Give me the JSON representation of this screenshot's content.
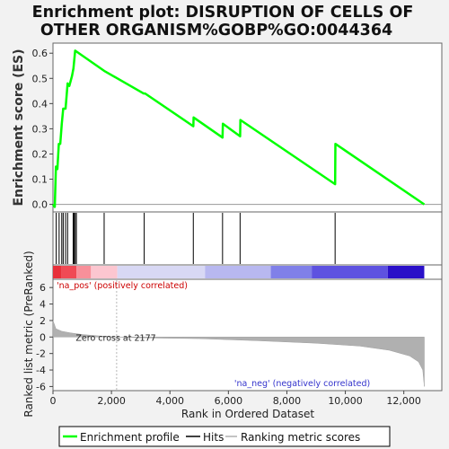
{
  "chart_data": {
    "type": "line",
    "title_lines": [
      "Enrichment plot: DISRUPTION OF CELLS OF",
      "OTHER ORGANISM%GOBP%GO:0044364"
    ],
    "xlabel": "Rank in Ordered Dataset",
    "ylabel_top": "Enrichment score (ES)",
    "ylabel_bottom": "Ranked list metric (PreRanked)",
    "xlim": [
      0,
      13300
    ],
    "x_ticks": [
      0,
      2000,
      4000,
      6000,
      8000,
      10000,
      12000
    ],
    "x_tick_labels": [
      "0",
      "2,000",
      "4,000",
      "6,000",
      "8,000",
      "10,000",
      "12,000"
    ],
    "es_ylim": [
      -0.03,
      0.64
    ],
    "es_ticks": [
      0.0,
      0.1,
      0.2,
      0.3,
      0.4,
      0.5,
      0.6
    ],
    "es_tick_labels": [
      "0.0",
      "0.1",
      "0.2",
      "0.3",
      "0.4",
      "0.5",
      "0.6"
    ],
    "metric_ylim": [
      -6.5,
      7.0
    ],
    "metric_ticks": [
      6,
      4,
      2,
      0,
      -2,
      -4,
      -6
    ],
    "metric_tick_labels": [
      "6",
      "4",
      "2",
      "0",
      "-2",
      "-4",
      "-6"
    ],
    "series": [
      {
        "name": "Enrichment profile",
        "color": "#00ff00",
        "x": [
          0,
          60,
          100,
          150,
          200,
          250,
          300,
          350,
          430,
          500,
          560,
          650,
          700,
          760,
          1750,
          3100,
          3150,
          4800,
          4810,
          5800,
          5810,
          6400,
          6410,
          9650,
          9660,
          12700
        ],
        "y": [
          0.0,
          -0.01,
          0.15,
          0.14,
          0.24,
          0.24,
          0.32,
          0.38,
          0.38,
          0.48,
          0.47,
          0.51,
          0.54,
          0.61,
          0.53,
          0.44,
          0.44,
          0.31,
          0.345,
          0.265,
          0.32,
          0.27,
          0.335,
          0.08,
          0.24,
          0.0
        ]
      }
    ],
    "hits": [
      110,
      210,
      300,
      350,
      430,
      500,
      690,
      720,
      760,
      800,
      1750,
      3120,
      4800,
      5800,
      6400,
      9650
    ],
    "metric_profile": {
      "x": [
        0,
        100,
        300,
        600,
        1000,
        1500,
        2177,
        3000,
        5000,
        7000,
        9000,
        10500,
        11500,
        12200,
        12500,
        12650,
        12700
      ],
      "y": [
        2.0,
        1.0,
        0.7,
        0.5,
        0.3,
        0.15,
        0.0,
        -0.1,
        -0.2,
        -0.45,
        -0.75,
        -1.1,
        -1.6,
        -2.3,
        -3.0,
        -4.0,
        -6.0
      ]
    },
    "heat_strip": [
      {
        "x0": 0,
        "x1": 300,
        "color": "#e8303a"
      },
      {
        "x0": 300,
        "x1": 800,
        "color": "#f04a55"
      },
      {
        "x0": 800,
        "x1": 1300,
        "color": "#f8909a"
      },
      {
        "x0": 1300,
        "x1": 2200,
        "color": "#fcc6d0"
      },
      {
        "x0": 2200,
        "x1": 5200,
        "color": "#d8d8f4"
      },
      {
        "x0": 5200,
        "x1": 7450,
        "color": "#b8b8f0"
      },
      {
        "x0": 7450,
        "x1": 8850,
        "color": "#8080e8"
      },
      {
        "x0": 8850,
        "x1": 11450,
        "color": "#5e52e0"
      },
      {
        "x0": 11450,
        "x1": 12700,
        "color": "#2a10c8"
      }
    ],
    "zero_cross_rank": 2177,
    "annotations": {
      "zero_cross": "Zero cross at 2177",
      "pos": "'na_pos' (positively correlated)",
      "neg": "'na_neg' (negatively correlated)"
    },
    "colors": {
      "es_line": "#00ff00",
      "hits": "#000000",
      "metric_fill": "#b0b0b0",
      "pos_text": "#cc0000",
      "neg_text": "#3333cc",
      "zero_line": "#b8b8b8"
    },
    "legend": {
      "position": "bottom",
      "items": [
        "Enrichment profile",
        "Hits",
        "Ranking metric scores"
      ]
    },
    "grid": false
  }
}
